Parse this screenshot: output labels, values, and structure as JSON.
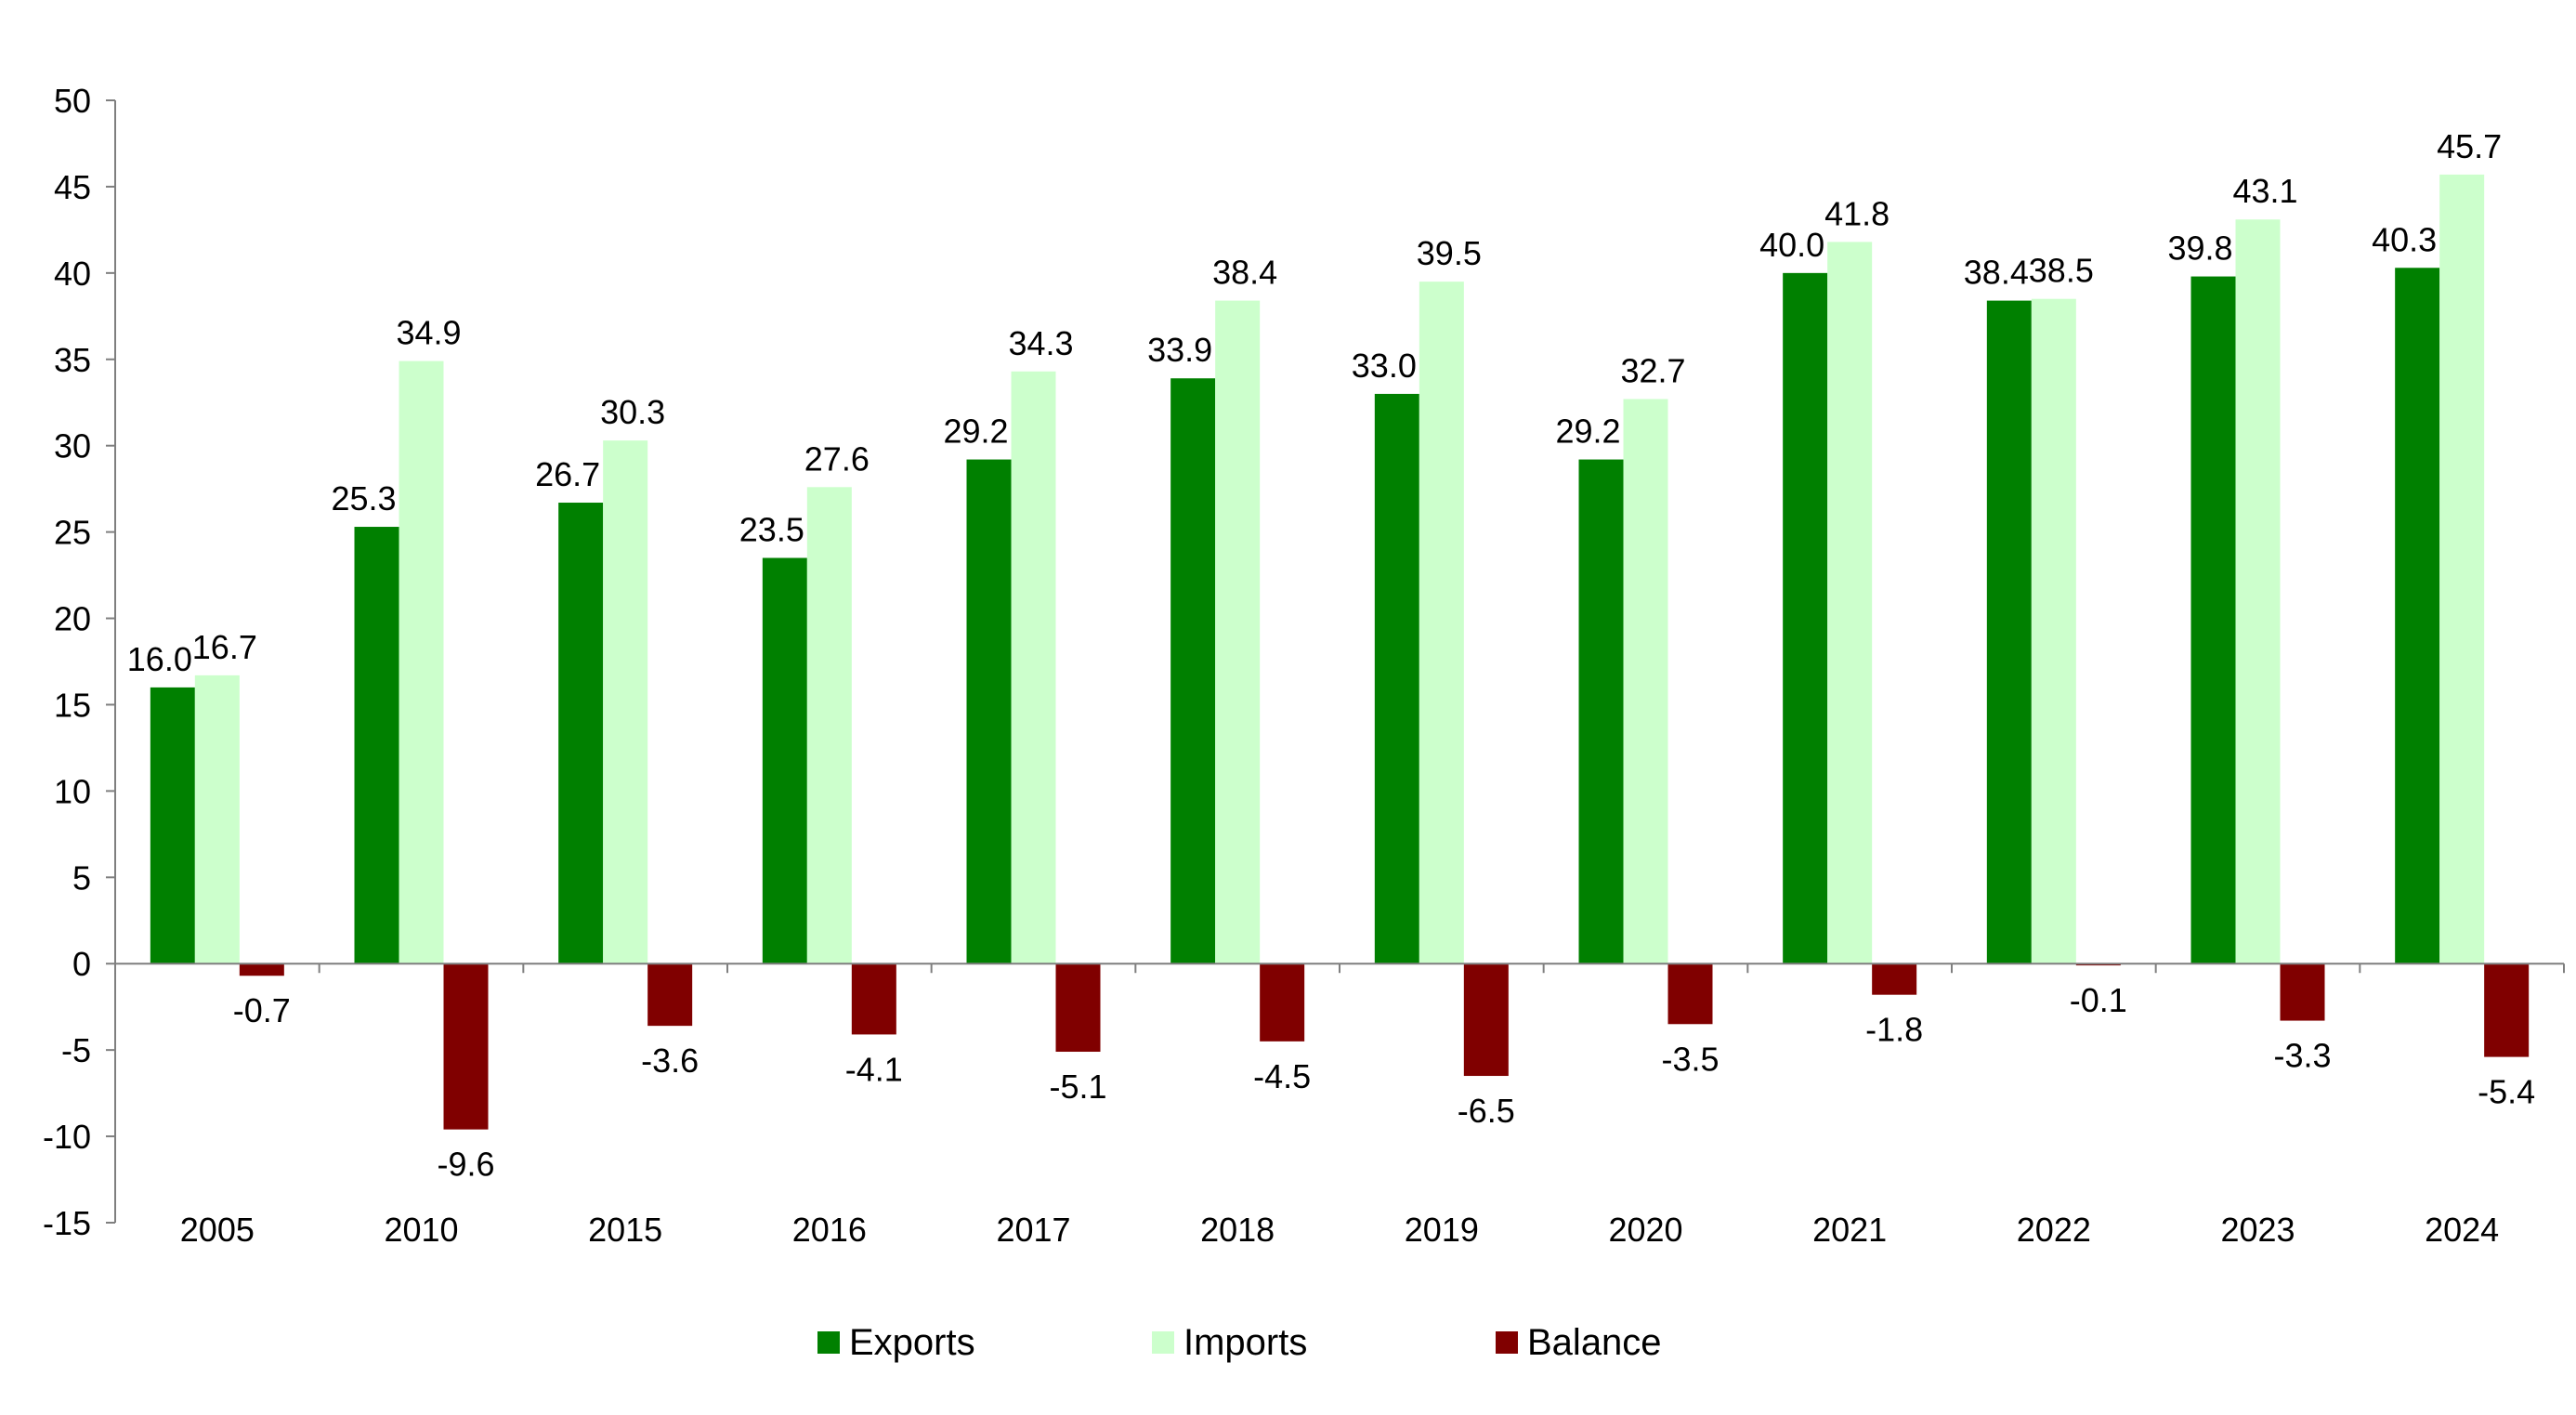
{
  "chart_data": {
    "type": "bar",
    "categories": [
      "2005",
      "2010",
      "2015",
      "2016",
      "2017",
      "2018",
      "2019",
      "2020",
      "2021",
      "2022",
      "2023",
      "2024"
    ],
    "series": [
      {
        "name": "Exports",
        "color": "#008000",
        "values": [
          16.0,
          25.3,
          26.7,
          23.5,
          29.2,
          33.9,
          33.0,
          29.2,
          40.0,
          38.4,
          39.8,
          40.3
        ],
        "labels": [
          "16.0",
          "25.3",
          "26.7",
          "23.5",
          "29.2",
          "33.9",
          "33.0",
          "29.2",
          "40.0",
          "38.4",
          "39.8",
          "40.3"
        ]
      },
      {
        "name": "Imports",
        "color": "#CCFFCC",
        "values": [
          16.7,
          34.9,
          30.3,
          27.6,
          34.3,
          38.4,
          39.5,
          32.7,
          41.8,
          38.5,
          43.1,
          45.7
        ],
        "labels": [
          "16.7",
          "34.9",
          "30.3",
          "27.6",
          "34.3",
          "38.4",
          "39.5",
          "32.7",
          "41.8",
          "38.5",
          "43.1",
          "45.7"
        ]
      },
      {
        "name": "Balance",
        "color": "#800000",
        "values": [
          -0.7,
          -9.6,
          -3.6,
          -4.1,
          -5.1,
          -4.5,
          -6.5,
          -3.5,
          -1.8,
          -0.1,
          -3.3,
          -5.4
        ],
        "labels": [
          "-0.7",
          "-9.6",
          "-3.6",
          "-4.1",
          "-5.1",
          "-4.5",
          "-6.5",
          "-3.5",
          "-1.8",
          "-0.1",
          "-3.3",
          "-5.4"
        ]
      }
    ],
    "ylim": [
      -15,
      50
    ],
    "yticks": [
      50,
      45,
      40,
      35,
      30,
      25,
      20,
      15,
      10,
      5,
      0,
      -5,
      -10,
      -15
    ],
    "ytick_labels": [
      "50",
      "45",
      "40",
      "35",
      "30",
      "25",
      "20",
      "15",
      "10",
      "5",
      "0",
      "-5",
      "-10",
      "-15"
    ],
    "grid": false,
    "legend_position": "bottom"
  }
}
